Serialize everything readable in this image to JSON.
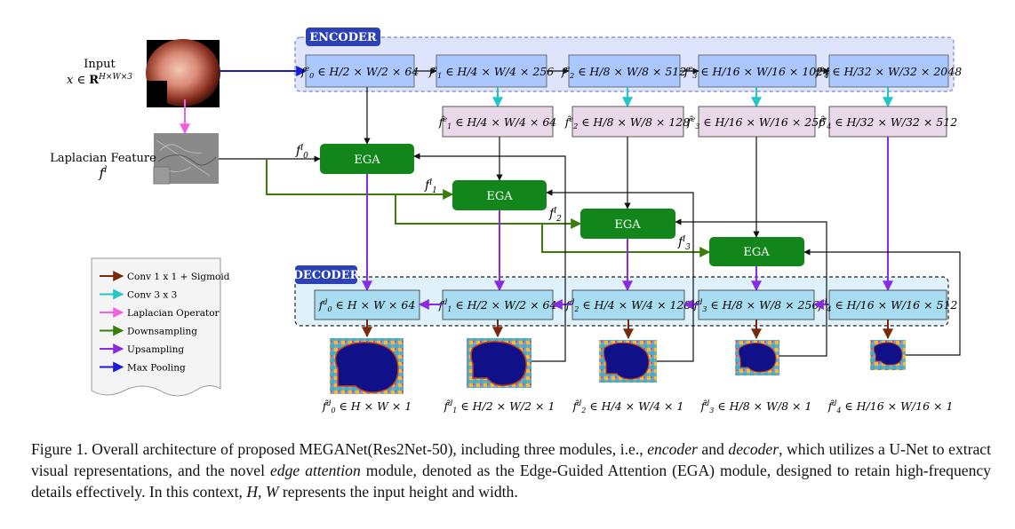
{
  "diagram": {
    "encoder_label": "ENCODER",
    "decoder_label": "DECODER",
    "input_label": "Input",
    "input_formula": "x ∈ R^{H×W×3}",
    "laplacian_label": "Laplacian Feature",
    "laplacian_symbol": "f^l",
    "ega_label": "EGA",
    "encoder_nodes": [
      "f₀ᵉ ∈ H/2 × W/2 × 64",
      "f₁ᵉ ∈ H/4 × W/4 × 256",
      "f₂ᵉ ∈ H/8 × W/8 × 512",
      "f₃ᵉ ∈ H/16 × W/16 × 1024",
      "f₄ᵉ ∈ H/32 × W/32 × 2048"
    ],
    "hat_nodes": [
      "f̂₁ᵉ ∈ H/4 × W/4 × 64",
      "f̂₂ᵉ ∈ H/8 × W/8 × 128",
      "f̂₃ᵉ ∈ H/16 × W/16 × 256",
      "f̂₄ᵉ ∈ H/32 × W/32 × 512"
    ],
    "decoder_nodes": [
      "f₀ᵈ ∈ H × W × 64",
      "f₁ᵈ ∈ H/2 × W/2 × 64",
      "f₂ᵈ ∈ H/4 × W/4 × 128",
      "f₃ᵈ ∈ H/8 × W/8 × 256",
      "f₄ᵈ ∈ H/16 × W/16 × 512"
    ],
    "laplacian_taps": [
      "f₀ˡ",
      "f₁ˡ",
      "f₂ˡ",
      "f₃ˡ"
    ],
    "outputs": [
      "f̂₀ᵈ ∈ H × W × 1",
      "f̂₁ᵈ ∈ H/2 × W/2 × 1",
      "f̂₂ᵈ ∈ H/4 × W/4 × 1",
      "f̂₃ᵈ ∈ H/8 × W/8 × 1",
      "f̂₄ᵈ ∈ H/16 × W/16 × 1"
    ]
  },
  "legend": [
    {
      "label": "Conv 1 x 1 + Sigmoid",
      "color": "#7a2a0a"
    },
    {
      "label": "Conv 3 x 3",
      "color": "#22c6c6"
    },
    {
      "label": "Laplacian Operator",
      "color": "#f060e0"
    },
    {
      "label": "Downsampling",
      "color": "#3a7d0a"
    },
    {
      "label": "Upsampling",
      "color": "#8a2be2"
    },
    {
      "label": "Max Pooling",
      "color": "#1a1ad8"
    }
  ],
  "caption": {
    "p1": "Figure 1. Overall architecture of proposed MEGANet(Res2Net-50), including three modules, i.e., ",
    "i1": "encoder",
    "p2": " and ",
    "i2": "decoder",
    "p3": ", which utilizes a U-Net to extract visual representations, and the novel ",
    "i3": "edge attention",
    "p4": " module, denoted as the Edge-Guided Attention (EGA) module, designed to retain high-frequency details effectively. In this context, ",
    "i4": "H, W",
    "p5": " represents the input height and width."
  },
  "colors": {
    "encoder_bg": "#dde4fb",
    "encoder_node": "#aac8ff",
    "hat_node": "#e8d8e8",
    "decoder_bg": "#dff2fb",
    "decoder_node": "#a8dcf0",
    "ega": "#12861a",
    "label_badge": "#2b41b4"
  }
}
